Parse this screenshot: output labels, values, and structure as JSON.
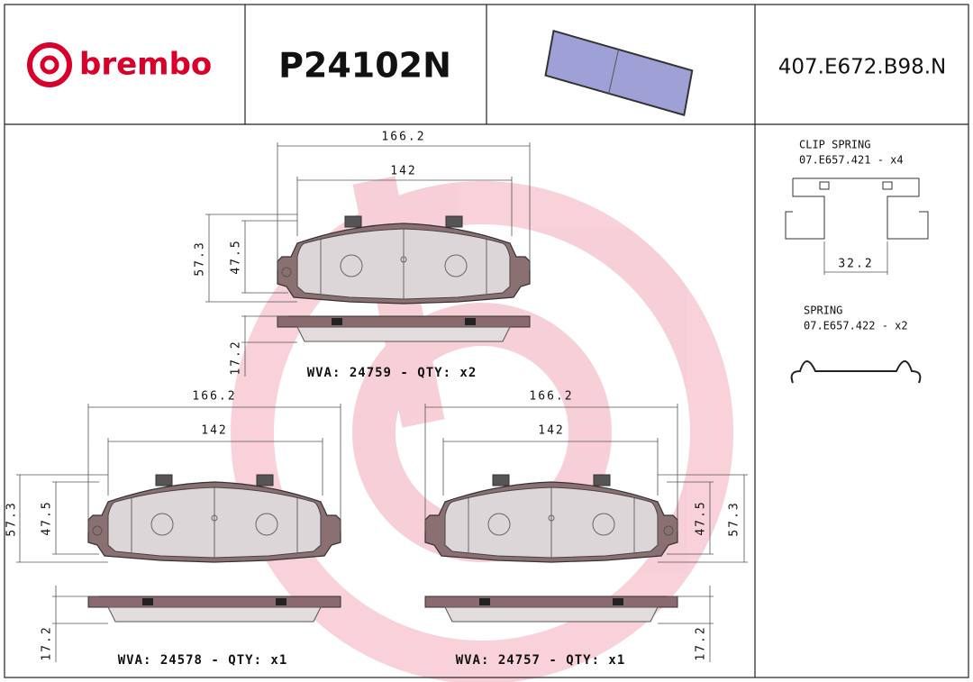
{
  "header": {
    "brand": "brembo",
    "part_number": "P24102N",
    "code": "407.E672.B98.N"
  },
  "pads": [
    {
      "overall_width": "166.2",
      "inner_width": "142",
      "overall_height": "57.3",
      "inner_height": "47.5",
      "thickness": "17.2",
      "label": "WVA: 24759 - QTY: x2"
    },
    {
      "overall_width": "166.2",
      "inner_width": "142",
      "overall_height": "57.3",
      "inner_height": "47.5",
      "thickness": "17.2",
      "label": "WVA: 24578 - QTY: x1"
    },
    {
      "overall_width": "166.2",
      "inner_width": "142",
      "overall_height": "57.3",
      "inner_height": "47.5",
      "thickness": "17.2",
      "label": "WVA: 24757 - QTY: x1"
    }
  ],
  "accessories": [
    {
      "name": "CLIP SPRING",
      "code": "07.E657.421 - x4",
      "dimension": "32.2"
    },
    {
      "name": "SPRING",
      "code": "07.E657.422 - x2"
    }
  ]
}
